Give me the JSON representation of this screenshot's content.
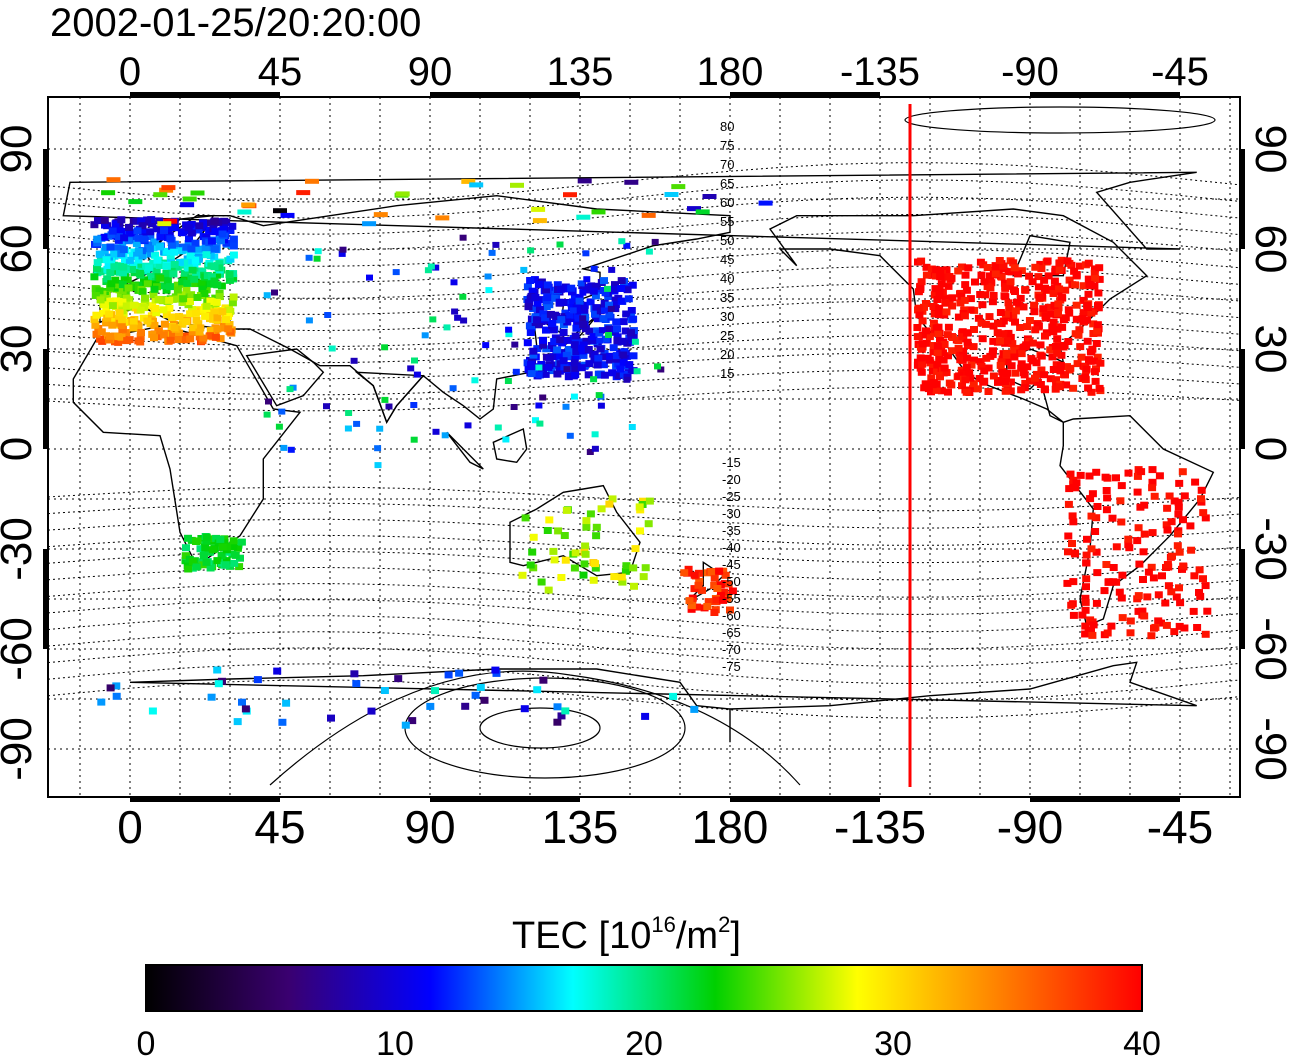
{
  "title": "2002-01-25/20:20:00",
  "colorbar": {
    "label_main": "TEC  [10",
    "label_exp": "16",
    "label_mid": "/m",
    "label_exp2": "2",
    "label_end": "]",
    "ticks": [
      "0",
      "10",
      "20",
      "30",
      "40"
    ],
    "min": 0,
    "max": 40,
    "colormap": [
      "#000000",
      "#3a0070",
      "#0000ff",
      "#00ffff",
      "#00d000",
      "#ffff00",
      "#ff8000",
      "#ff0000"
    ]
  },
  "axes": {
    "lon_ticks": [
      "0",
      "45",
      "90",
      "135",
      "180",
      "-135",
      "-90",
      "-45"
    ],
    "lat_ticks": [
      "90",
      "60",
      "30",
      "0",
      "-30",
      "-60",
      "-90"
    ]
  },
  "magnetic_latitude_labels": {
    "north": [
      "80",
      "75",
      "70",
      "65",
      "60",
      "55",
      "50",
      "45",
      "40",
      "35",
      "30",
      "25",
      "20",
      "15"
    ],
    "south": [
      "-15",
      "-20",
      "-25",
      "-30",
      "-35",
      "-40",
      "-45",
      "-50",
      "-55",
      "-60",
      "-65",
      "-70",
      "-75"
    ]
  },
  "terminator_line": {
    "color": "#ff0000",
    "longitude": -126
  },
  "tec_regions": [
    {
      "name": "north-america",
      "tec": 40
    },
    {
      "name": "south-america",
      "tec": 40
    },
    {
      "name": "europe",
      "tec": 17
    },
    {
      "name": "east-asia",
      "tec": 11
    },
    {
      "name": "australia",
      "tec": 27
    },
    {
      "name": "new-zealand",
      "tec": 38
    },
    {
      "name": "southern-africa",
      "tec": 22
    },
    {
      "name": "antarctica",
      "tec": 12
    }
  ]
}
